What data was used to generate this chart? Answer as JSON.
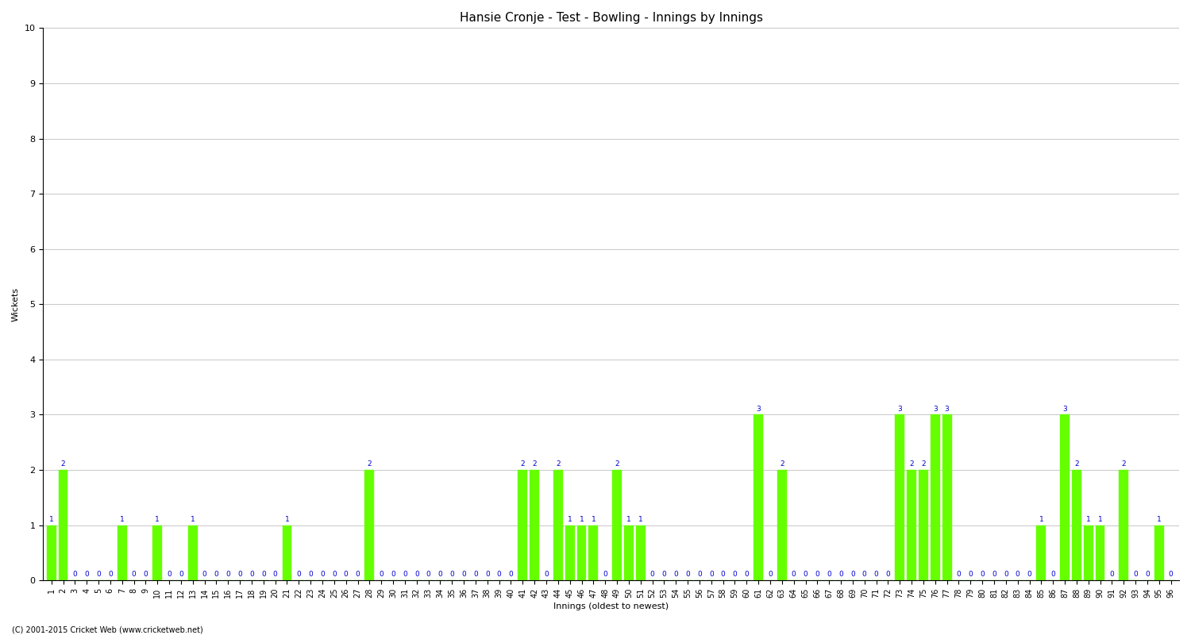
{
  "title": "Hansie Cronje - Test - Bowling - Innings by Innings",
  "xlabel": "Innings (oldest to newest)",
  "ylabel": "Wickets",
  "ylim": [
    0,
    10
  ],
  "yticks": [
    0,
    1,
    2,
    3,
    4,
    5,
    6,
    7,
    8,
    9,
    10
  ],
  "bar_color": "#66ff00",
  "bar_edge_color": "#66ff00",
  "label_color": "#0000cc",
  "background_color": "#ffffff",
  "grid_color": "#c8c8c8",
  "title_fontsize": 11,
  "axis_label_fontsize": 8,
  "tick_fontsize": 7,
  "bar_label_fontsize": 6.5,
  "footnote": "(C) 2001-2015 Cricket Web (www.cricketweb.net)",
  "wickets": [
    1,
    2,
    0,
    0,
    0,
    0,
    1,
    0,
    0,
    1,
    0,
    0,
    1,
    0,
    0,
    0,
    0,
    0,
    0,
    0,
    1,
    0,
    0,
    0,
    0,
    0,
    0,
    2,
    0,
    0,
    0,
    0,
    0,
    0,
    0,
    0,
    0,
    0,
    0,
    0,
    2,
    2,
    0,
    2,
    1,
    1,
    1,
    0,
    2,
    1,
    1,
    0,
    0,
    0,
    0,
    0,
    0,
    0,
    0,
    0,
    3,
    0,
    2,
    0,
    0,
    0,
    0,
    0,
    0,
    0,
    0,
    0,
    3,
    2,
    2,
    3,
    3,
    0,
    0,
    0,
    0,
    0,
    0,
    0,
    1,
    0,
    3,
    2,
    1,
    1,
    0,
    2,
    0,
    0,
    1,
    0
  ]
}
